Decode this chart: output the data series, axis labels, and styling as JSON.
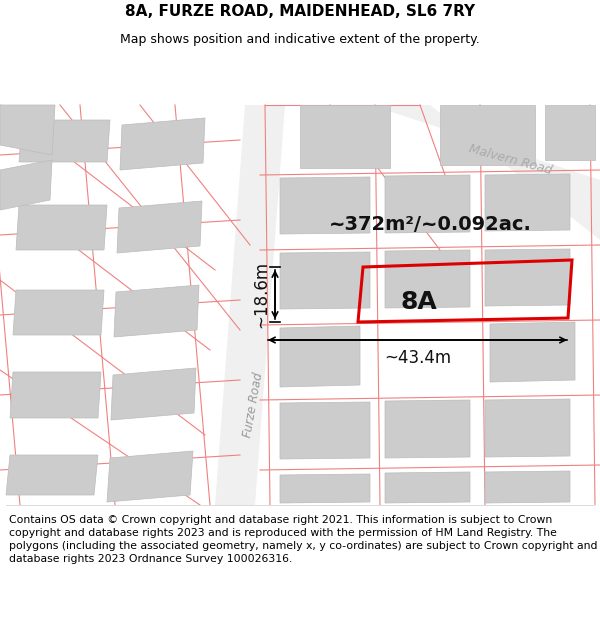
{
  "title": "8A, FURZE ROAD, MAIDENHEAD, SL6 7RY",
  "subtitle": "Map shows position and indicative extent of the property.",
  "footer": "Contains OS data © Crown copyright and database right 2021. This information is subject to Crown copyright and database rights 2023 and is reproduced with the permission of HM Land Registry. The polygons (including the associated geometry, namely x, y co-ordinates) are subject to Crown copyright and database rights 2023 Ordnance Survey 100026316.",
  "area_label": "~372m²/~0.092ac.",
  "width_label": "~43.4m",
  "height_label": "~18.6m",
  "property_label": "8A",
  "road_label_furze": "Furze Road",
  "road_label_malvern": "Malvern Road",
  "bg_color": "#ffffff",
  "map_bg": "#f7f7f7",
  "parcel_line_color": "#f08080",
  "highlight_color": "#dd0000",
  "building_fill": "#cccccc",
  "building_edge": "#bbbbbb",
  "title_fontsize": 11,
  "subtitle_fontsize": 9,
  "footer_fontsize": 7.8
}
